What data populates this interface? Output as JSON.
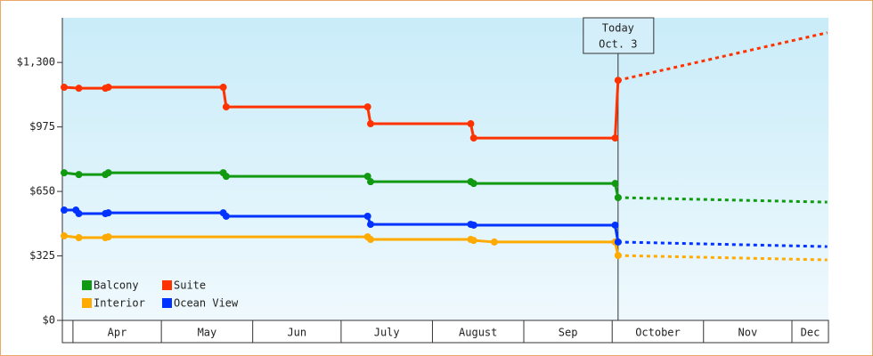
{
  "chart_data": {
    "type": "line",
    "xlim": [
      87.4,
      347.4
    ],
    "ylim": [
      0,
      1525
    ],
    "xticks": [
      {
        "value": 91,
        "label": "Apr"
      },
      {
        "value": 121,
        "label": "May"
      },
      {
        "value": 152,
        "label": "Jun"
      },
      {
        "value": 182,
        "label": "July"
      },
      {
        "value": 213,
        "label": "August"
      },
      {
        "value": 244,
        "label": "Sep"
      },
      {
        "value": 274,
        "label": "October"
      },
      {
        "value": 305,
        "label": "Nov"
      },
      {
        "value": 335,
        "label": "Dec"
      }
    ],
    "yticks": [
      {
        "value": 0,
        "label": "$0"
      },
      {
        "value": 325,
        "label": "$325"
      },
      {
        "value": 650,
        "label": "$650"
      },
      {
        "value": 975,
        "label": "$975"
      },
      {
        "value": 1300,
        "label": "$1,300"
      }
    ],
    "legend": "lower left",
    "annotation": {
      "x": 276,
      "lines": [
        "Today",
        "Oct. 3"
      ]
    },
    "series": [
      {
        "name": "Balcony",
        "color": "#119911",
        "x": [
          88,
          93,
          102,
          103,
          142,
          143,
          191,
          192,
          226,
          227,
          275,
          276
        ],
        "values": [
          744,
          735,
          735,
          744,
          744,
          726,
          726,
          699,
          699,
          690,
          690,
          619
        ],
        "forecast": {
          "x": [
            276,
            347
          ],
          "values": [
            619,
            596
          ]
        }
      },
      {
        "name": "Suite",
        "color": "#ff3300",
        "x": [
          88,
          93,
          102,
          103,
          142,
          143,
          191,
          192,
          226,
          227,
          275,
          276
        ],
        "values": [
          1175,
          1170,
          1170,
          1175,
          1175,
          1076,
          1076,
          991,
          991,
          919,
          919,
          1210
        ],
        "forecast": {
          "x": [
            276,
            347
          ],
          "values": [
            1210,
            1450
          ]
        }
      },
      {
        "name": "Interior",
        "color": "#ffaa00",
        "x": [
          88,
          93,
          102,
          103,
          191,
          192,
          226,
          227,
          234,
          275,
          276
        ],
        "values": [
          426,
          417,
          417,
          421,
          421,
          408,
          408,
          403,
          395,
          395,
          327
        ],
        "forecast": {
          "x": [
            276,
            347
          ],
          "values": [
            327,
            305
          ]
        }
      },
      {
        "name": "Ocean View",
        "color": "#0033ff",
        "x": [
          88,
          92,
          93,
          102,
          103,
          142,
          143,
          191,
          192,
          226,
          227,
          275,
          276
        ],
        "values": [
          556,
          556,
          538,
          538,
          542,
          542,
          525,
          525,
          484,
          484,
          480,
          480,
          395
        ],
        "forecast": {
          "x": [
            276,
            347
          ],
          "values": [
            395,
            372
          ]
        }
      }
    ]
  }
}
